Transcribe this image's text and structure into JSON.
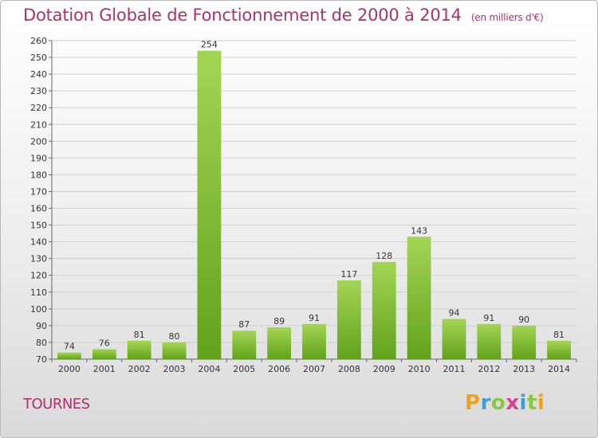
{
  "header": {
    "title": "Dotation Globale de Fonctionnement de 2000 à 2014",
    "subtitle": "(en milliers d'€)"
  },
  "footer": {
    "commune": "TOURNES",
    "logo_letters": [
      "P",
      "r",
      "o",
      "x",
      "i",
      "t",
      "i"
    ],
    "logo_colors": [
      "#f0a020",
      "#3aa0d8",
      "#8cc63f",
      "#e23c8c",
      "#3aa0d8",
      "#8cc63f",
      "#f0a020"
    ]
  },
  "colors": {
    "bar_light": "#a3d554",
    "bar_dark": "#62a21a",
    "title": "#b0306a"
  },
  "chart_data": {
    "type": "bar",
    "title": "Dotation Globale de Fonctionnement de 2000 à 2014",
    "subtitle": "(en milliers d'€)",
    "xlabel": "",
    "ylabel": "",
    "categories": [
      "2000",
      "2001",
      "2002",
      "2003",
      "2004",
      "2005",
      "2006",
      "2007",
      "2008",
      "2009",
      "2010",
      "2011",
      "2012",
      "2013",
      "2014"
    ],
    "values": [
      74,
      76,
      81,
      80,
      254,
      87,
      89,
      91,
      117,
      128,
      143,
      94,
      91,
      90,
      81
    ],
    "ylim": [
      70,
      260
    ],
    "ytick_step": 10,
    "grid": true
  }
}
